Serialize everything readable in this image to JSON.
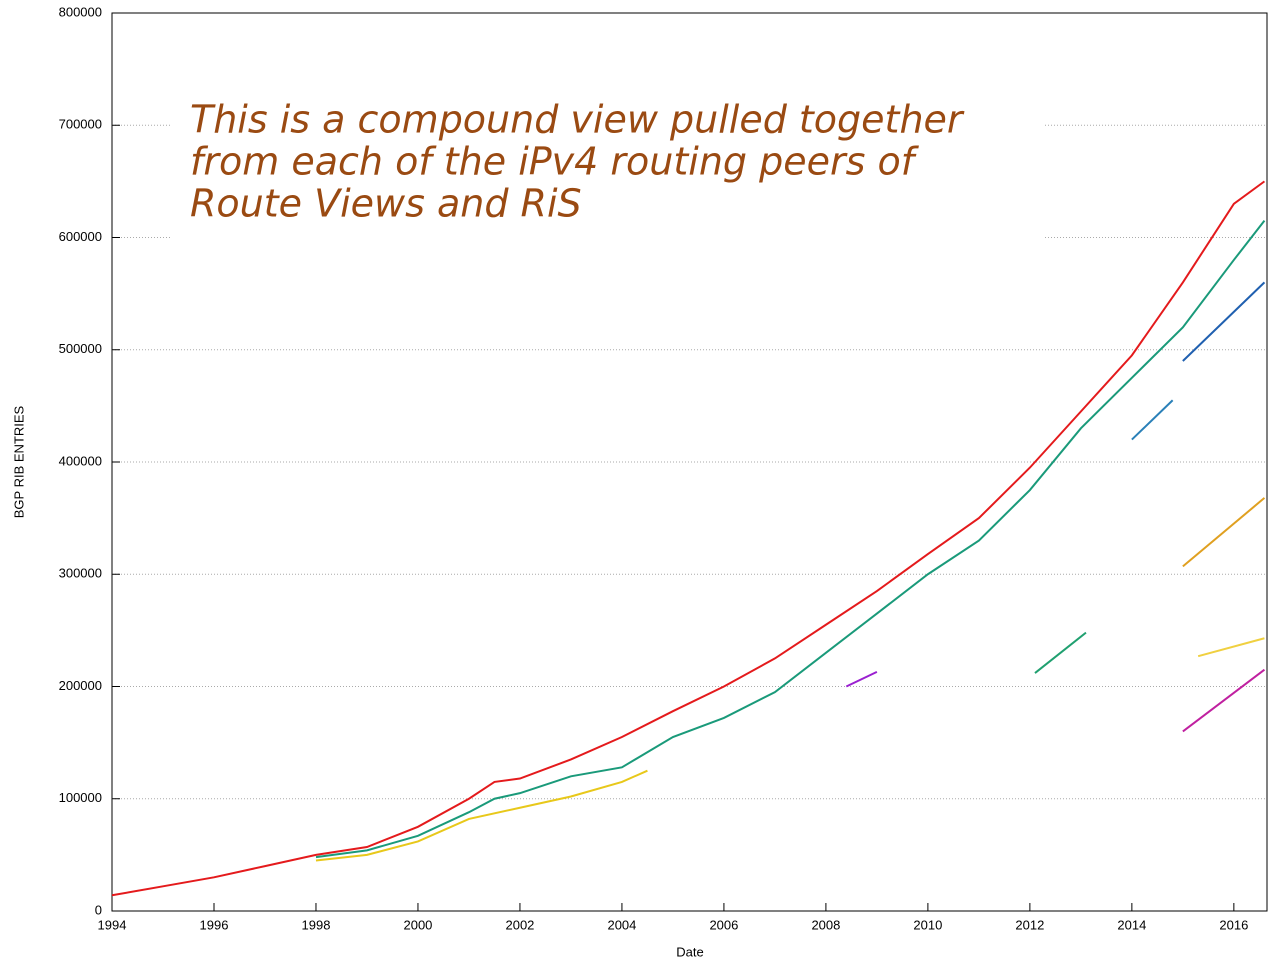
{
  "chart_data": {
    "type": "line",
    "x_label": "Date",
    "y_label": "BGP RIB ENTRIES",
    "annotation": [
      "This is a compound view pulled together",
      "from each of the iPv4 routing peers of",
      "Route Views and RiS"
    ],
    "xlim": [
      1994,
      2016.65
    ],
    "ylim": [
      0,
      800000
    ],
    "xticks": [
      1994,
      1996,
      1998,
      2000,
      2002,
      2004,
      2006,
      2008,
      2010,
      2012,
      2014,
      2016
    ],
    "yticks": [
      0,
      100000,
      200000,
      300000,
      400000,
      500000,
      600000,
      700000,
      800000
    ],
    "grid": true,
    "series": [
      {
        "color": "#e41a1c",
        "x": [
          1994,
          1995,
          1996,
          1997,
          1998,
          1999,
          2000,
          2001,
          2001.5,
          2002,
          2003,
          2004,
          2005,
          2006,
          2007,
          2008,
          2009,
          2010,
          2011,
          2012,
          2013,
          2014,
          2015,
          2016,
          2016.6
        ],
        "values": [
          14000,
          22000,
          30000,
          40000,
          50000,
          57000,
          75000,
          100000,
          115000,
          118000,
          135000,
          155000,
          178000,
          200000,
          225000,
          255000,
          285000,
          318000,
          350000,
          395000,
          445000,
          495000,
          560000,
          630000,
          650000
        ]
      },
      {
        "color": "#e8c81a",
        "x": [
          1998,
          1999,
          2000,
          2001,
          2002,
          2003,
          2004,
          2004.5
        ],
        "values": [
          45000,
          50000,
          62000,
          82000,
          92000,
          102000,
          115000,
          125000
        ]
      },
      {
        "color": "#1a9a7a",
        "x": [
          1998,
          1999,
          2000,
          2001,
          2001.5,
          2002,
          2003,
          2004,
          2005,
          2006,
          2007,
          2008,
          2009,
          2010,
          2011,
          2012,
          2013,
          2014,
          2015,
          2016,
          2016.6
        ],
        "values": [
          48000,
          54000,
          67000,
          88000,
          100000,
          105000,
          120000,
          128000,
          155000,
          172000,
          195000,
          230000,
          265000,
          300000,
          330000,
          375000,
          430000,
          475000,
          520000,
          580000,
          615000
        ]
      },
      {
        "color": "#2060b0",
        "x": [
          2015,
          2016.6
        ],
        "values": [
          490000,
          560000
        ]
      },
      {
        "color": "#2a80b8",
        "x": [
          2014,
          2014.8
        ],
        "values": [
          420000,
          455000
        ]
      },
      {
        "color": "#9a20d0",
        "x": [
          2008.4,
          2009
        ],
        "values": [
          200000,
          213000
        ]
      },
      {
        "color": "#20a070",
        "x": [
          2012.1,
          2013.1
        ],
        "values": [
          212000,
          248000
        ]
      },
      {
        "color": "#e0a020",
        "x": [
          2015,
          2016.6
        ],
        "values": [
          307000,
          368000
        ]
      },
      {
        "color": "#f0d040",
        "x": [
          2015.3,
          2016.6
        ],
        "values": [
          227000,
          243000
        ]
      },
      {
        "color": "#c020a0",
        "x": [
          2015,
          2016.6
        ],
        "values": [
          160000,
          215000
        ]
      }
    ]
  }
}
